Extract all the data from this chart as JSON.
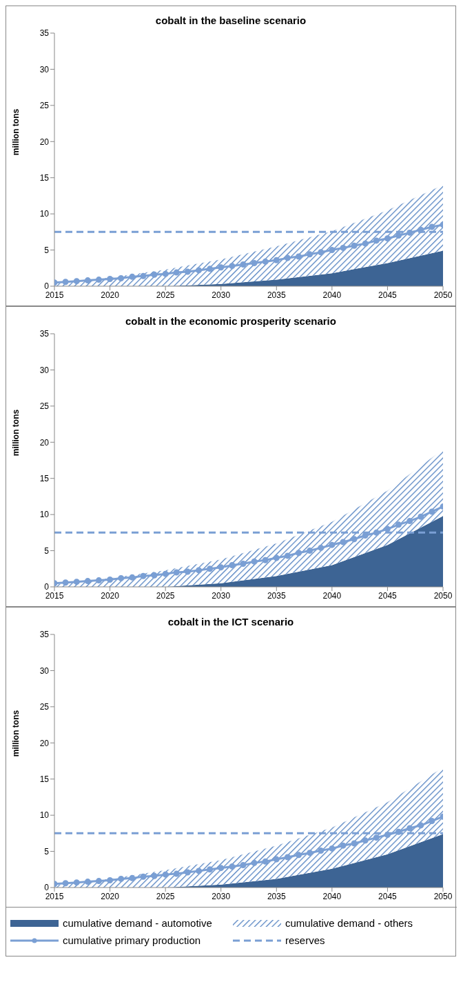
{
  "chart_data": [
    {
      "type": "area",
      "title": "cobalt in the baseline scenario",
      "ylabel": "million tons",
      "stacked": true,
      "xlim": [
        2015,
        2050
      ],
      "xticks": [
        2015,
        2020,
        2025,
        2030,
        2035,
        2040,
        2045,
        2050
      ],
      "ylim": [
        0,
        35
      ],
      "yticks": [
        0,
        5,
        10,
        15,
        20,
        25,
        30,
        35
      ],
      "x": [
        2015,
        2020,
        2025,
        2030,
        2035,
        2040,
        2045,
        2050
      ],
      "series": [
        {
          "color": "#3d6494",
          "values": [
            0,
            0,
            0,
            0.3,
            0.9,
            1.8,
            3.2,
            4.9
          ]
        },
        {
          "color": "#4f7fc0",
          "values": [
            0.3,
            1.2,
            2.3,
            3.4,
            4.6,
            5.8,
            7.3,
            9.1
          ]
        },
        {
          "type": "line",
          "color": "#7a9fd4",
          "marker": "circle",
          "x": [
            2015,
            2016,
            2017,
            2018,
            2019,
            2020,
            2021,
            2022,
            2023,
            2024,
            2025,
            2026,
            2027,
            2028,
            2029,
            2030,
            2031,
            2032,
            2033,
            2034,
            2035,
            2036,
            2037,
            2038,
            2039,
            2040,
            2041,
            2042,
            2043,
            2044,
            2045,
            2046,
            2047,
            2048,
            2049,
            2050
          ],
          "values": [
            0.5,
            0.6,
            0.7,
            0.8,
            0.9,
            1.0,
            1.1,
            1.3,
            1.4,
            1.6,
            1.7,
            1.9,
            2.0,
            2.2,
            2.4,
            2.6,
            2.8,
            3.0,
            3.2,
            3.4,
            3.6,
            3.9,
            4.1,
            4.4,
            4.7,
            5.0,
            5.3,
            5.6,
            5.9,
            6.3,
            6.6,
            7.0,
            7.4,
            7.8,
            8.2,
            8.5
          ]
        },
        {
          "type": "line",
          "color": "#7a9fd4",
          "line_style": "dashed",
          "x": [
            2015,
            2050
          ],
          "values": [
            7.5,
            7.5
          ]
        }
      ]
    },
    {
      "type": "area",
      "title": "cobalt in the economic prosperity scenario",
      "ylabel": "million tons",
      "stacked": true,
      "xlim": [
        2015,
        2050
      ],
      "xticks": [
        2015,
        2020,
        2025,
        2030,
        2035,
        2040,
        2045,
        2050
      ],
      "ylim": [
        0,
        35
      ],
      "yticks": [
        0,
        5,
        10,
        15,
        20,
        25,
        30,
        35
      ],
      "x": [
        2015,
        2020,
        2025,
        2030,
        2035,
        2040,
        2045,
        2050
      ],
      "series": [
        {
          "color": "#3d6494",
          "values": [
            0,
            0,
            0,
            0.5,
            1.5,
            3.0,
            5.8,
            9.8
          ]
        },
        {
          "color": "#4f7fc0",
          "values": [
            0.3,
            1.2,
            2.3,
            3.3,
            4.5,
            6.0,
            7.5,
            9.2
          ]
        },
        {
          "type": "line",
          "color": "#7a9fd4",
          "marker": "circle",
          "x": [
            2015,
            2016,
            2017,
            2018,
            2019,
            2020,
            2021,
            2022,
            2023,
            2024,
            2025,
            2026,
            2027,
            2028,
            2029,
            2030,
            2031,
            2032,
            2033,
            2034,
            2035,
            2036,
            2037,
            2038,
            2039,
            2040,
            2041,
            2042,
            2043,
            2044,
            2045,
            2046,
            2047,
            2048,
            2049,
            2050
          ],
          "values": [
            0.5,
            0.6,
            0.7,
            0.8,
            0.9,
            1.0,
            1.2,
            1.3,
            1.5,
            1.6,
            1.8,
            2.0,
            2.1,
            2.3,
            2.5,
            2.7,
            3.0,
            3.2,
            3.5,
            3.7,
            4.0,
            4.3,
            4.7,
            5.0,
            5.4,
            5.8,
            6.2,
            6.6,
            7.1,
            7.5,
            8.0,
            8.6,
            9.1,
            9.7,
            10.4,
            11.1
          ]
        },
        {
          "type": "line",
          "color": "#7a9fd4",
          "line_style": "dashed",
          "x": [
            2015,
            2050
          ],
          "values": [
            7.5,
            7.5
          ]
        }
      ]
    },
    {
      "type": "area",
      "title": "cobalt in the ICT scenario",
      "ylabel": "million tons",
      "stacked": true,
      "legend": "bottom",
      "xlim": [
        2015,
        2050
      ],
      "xticks": [
        2015,
        2020,
        2025,
        2030,
        2035,
        2040,
        2045,
        2050
      ],
      "ylim": [
        0,
        35
      ],
      "yticks": [
        0,
        5,
        10,
        15,
        20,
        25,
        30,
        35
      ],
      "x": [
        2015,
        2020,
        2025,
        2030,
        2035,
        2040,
        2045,
        2050
      ],
      "series": [
        {
          "name": "cumulative demand - automotive",
          "color": "#3d6494",
          "values": [
            0,
            0,
            0,
            0.4,
            1.2,
            2.6,
            4.6,
            7.4
          ]
        },
        {
          "name": "cumulative demand - others",
          "color": "#4f7fc0",
          "values": [
            0.3,
            1.2,
            2.4,
            3.4,
            4.6,
            5.7,
            7.2,
            9.2
          ]
        },
        {
          "name": "cumulative primary production",
          "type": "line",
          "color": "#7a9fd4",
          "marker": "circle",
          "x": [
            2015,
            2016,
            2017,
            2018,
            2019,
            2020,
            2021,
            2022,
            2023,
            2024,
            2025,
            2026,
            2027,
            2028,
            2029,
            2030,
            2031,
            2032,
            2033,
            2034,
            2035,
            2036,
            2037,
            2038,
            2039,
            2040,
            2041,
            2042,
            2043,
            2044,
            2045,
            2046,
            2047,
            2048,
            2049,
            2050
          ],
          "values": [
            0.5,
            0.6,
            0.7,
            0.8,
            0.9,
            1.0,
            1.2,
            1.3,
            1.5,
            1.6,
            1.8,
            1.9,
            2.1,
            2.3,
            2.5,
            2.7,
            2.9,
            3.1,
            3.4,
            3.6,
            3.9,
            4.2,
            4.5,
            4.8,
            5.1,
            5.4,
            5.8,
            6.1,
            6.5,
            6.9,
            7.3,
            7.7,
            8.2,
            8.6,
            9.2,
            9.8
          ]
        },
        {
          "name": "reserves",
          "type": "line",
          "color": "#7a9fd4",
          "line_style": "dashed",
          "x": [
            2015,
            2050
          ],
          "values": [
            7.5,
            7.5
          ]
        }
      ]
    }
  ]
}
